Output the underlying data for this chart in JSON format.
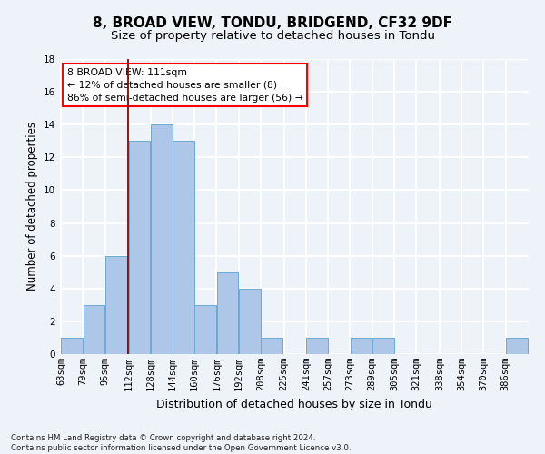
{
  "title": "8, BROAD VIEW, TONDU, BRIDGEND, CF32 9DF",
  "subtitle": "Size of property relative to detached houses in Tondu",
  "xlabel": "Distribution of detached houses by size in Tondu",
  "ylabel": "Number of detached properties",
  "footnote": "Contains HM Land Registry data © Crown copyright and database right 2024.\nContains public sector information licensed under the Open Government Licence v3.0.",
  "bins": [
    63,
    79,
    95,
    112,
    128,
    144,
    160,
    176,
    192,
    208,
    225,
    241,
    257,
    273,
    289,
    305,
    321,
    338,
    354,
    370,
    386
  ],
  "values": [
    1,
    3,
    6,
    13,
    14,
    13,
    3,
    5,
    4,
    1,
    0,
    1,
    0,
    1,
    1,
    0,
    0,
    0,
    0,
    0,
    1
  ],
  "bar_color": "#aec6e8",
  "bar_edge_color": "#6aaad4",
  "red_line_x": 112,
  "annotation_text": "8 BROAD VIEW: 111sqm\n← 12% of detached houses are smaller (8)\n86% of semi-detached houses are larger (56) →",
  "ylim": [
    0,
    18
  ],
  "yticks": [
    0,
    2,
    4,
    6,
    8,
    10,
    12,
    14,
    16,
    18
  ],
  "bg_color": "#eef2f9",
  "grid_color": "#ffffff",
  "title_fontsize": 11,
  "subtitle_fontsize": 9.5,
  "ylabel_fontsize": 8.5,
  "xlabel_fontsize": 9,
  "tick_fontsize": 7.5,
  "footnote_fontsize": 6.2
}
